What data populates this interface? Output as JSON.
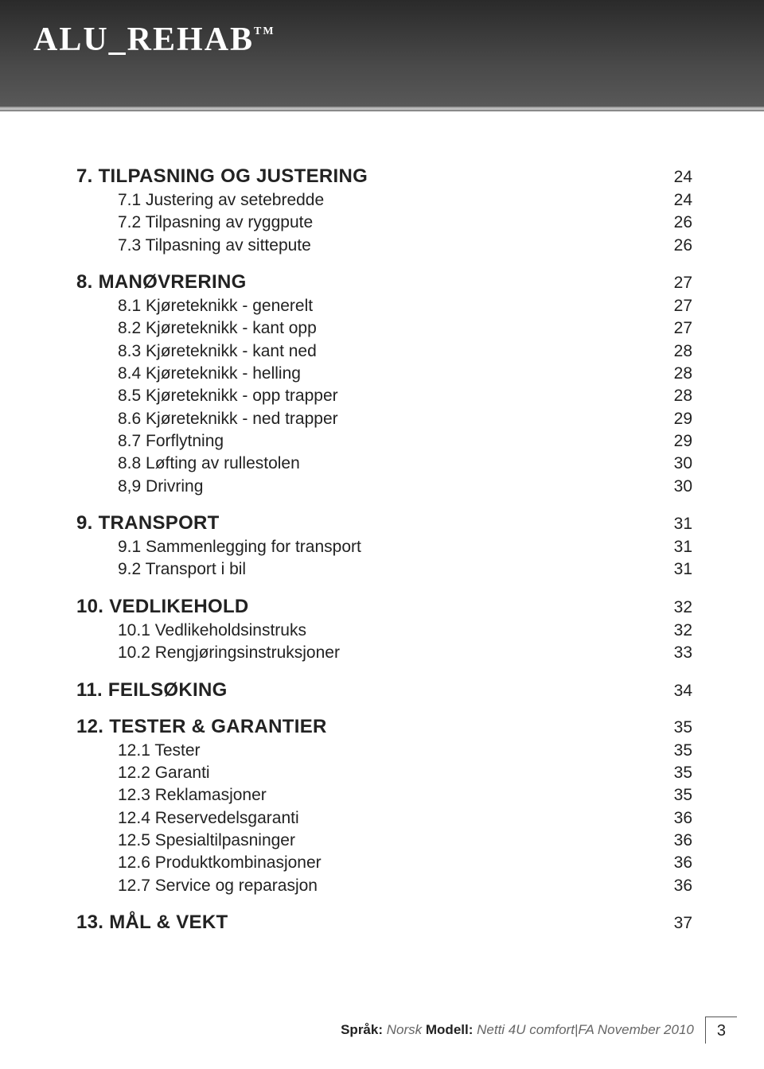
{
  "brand": "ALU_REHAB",
  "brand_tm": "TM",
  "sections": [
    {
      "num": "7.",
      "title": "TILPASNING OG JUSTERING",
      "page": "24",
      "items": [
        {
          "num": "7.1",
          "label": "Justering av setebredde",
          "page": "24"
        },
        {
          "num": "7.2",
          "label": "Tilpasning av ryggpute",
          "page": "26"
        },
        {
          "num": "7.3",
          "label": "Tilpasning av sittepute",
          "page": "26"
        }
      ]
    },
    {
      "num": "8.",
      "title": "MANØVRERING",
      "page": "27",
      "items": [
        {
          "num": "8.1",
          "label": "Kjøreteknikk - generelt",
          "page": "27"
        },
        {
          "num": "8.2",
          "label": "Kjøreteknikk - kant opp",
          "page": "27"
        },
        {
          "num": "8.3",
          "label": "Kjøreteknikk - kant ned",
          "page": "28"
        },
        {
          "num": "8.4",
          "label": "Kjøreteknikk - helling",
          "page": "28"
        },
        {
          "num": "8.5",
          "label": "Kjøreteknikk - opp trapper",
          "page": "28"
        },
        {
          "num": "8.6",
          "label": "Kjøreteknikk - ned trapper",
          "page": "29"
        },
        {
          "num": "8.7",
          "label": "Forflytning",
          "page": "29"
        },
        {
          "num": "8.8",
          "label": "Løfting av rullestolen",
          "page": "30"
        },
        {
          "num": "8,9",
          "label": "Drivring",
          "page": "30"
        }
      ]
    },
    {
      "num": "9.",
      "title": "TRANSPORT",
      "page": "31",
      "items": [
        {
          "num": "9.1",
          "label": "Sammenlegging for transport",
          "page": "31"
        },
        {
          "num": "9.2",
          "label": "Transport i bil",
          "page": "31"
        }
      ]
    },
    {
      "num": "10.",
      "title": "VEDLIKEHOLD",
      "page": "32",
      "items": [
        {
          "num": "10.1",
          "label": "Vedlikeholdsinstruks",
          "page": "32"
        },
        {
          "num": "10.2",
          "label": "Rengjøringsinstruksjoner",
          "page": "33"
        }
      ]
    },
    {
      "num": "11.",
      "title": "FEILSØKING",
      "page": "34",
      "items": []
    },
    {
      "num": "12.",
      "title": "TESTER & GARANTIER",
      "page": "35",
      "items": [
        {
          "num": "12.1",
          "label": "Tester",
          "page": "35"
        },
        {
          "num": "12.2",
          "label": "Garanti",
          "page": "35"
        },
        {
          "num": "12.3",
          "label": "Reklamasjoner",
          "page": "35"
        },
        {
          "num": "12.4",
          "label": "Reservedelsgaranti",
          "page": "36"
        },
        {
          "num": "12.5",
          "label": "Spesialtilpasninger",
          "page": "36"
        },
        {
          "num": "12.6",
          "label": "Produktkombinasjoner",
          "page": "36"
        },
        {
          "num": "12.7",
          "label": "Service og reparasjon",
          "page": "36"
        }
      ]
    },
    {
      "num": "13.",
      "title": "MÅL & VEKT",
      "page": "37",
      "items": []
    }
  ],
  "footer": {
    "lang_label": "Språk:",
    "lang_value": "Norsk",
    "model_label": "Modell:",
    "model_value": "Netti 4U comfort|FA November 2010",
    "page_number": "3"
  }
}
